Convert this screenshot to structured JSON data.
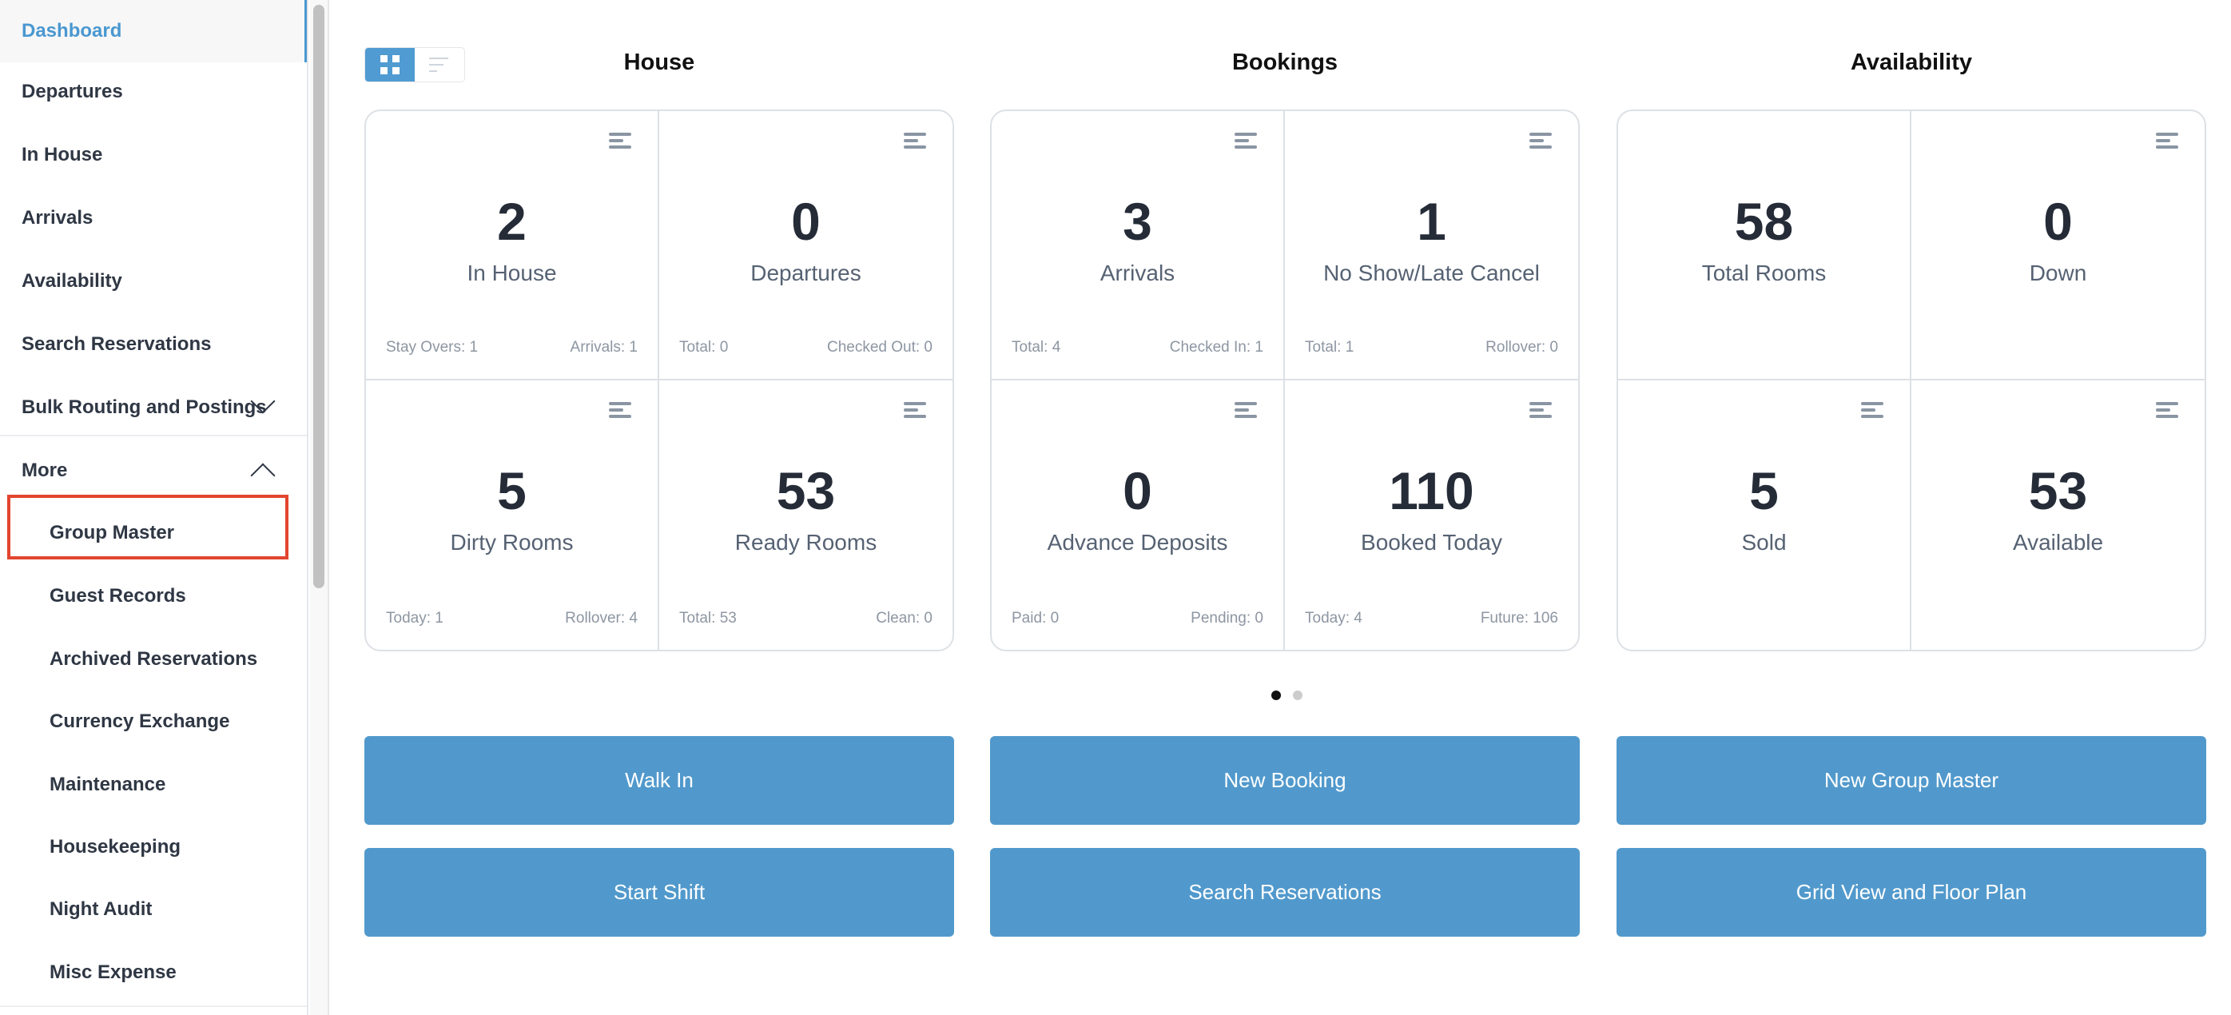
{
  "sidebar": {
    "items": [
      {
        "label": "Dashboard",
        "active": true
      },
      {
        "label": "Departures"
      },
      {
        "label": "In House"
      },
      {
        "label": "Arrivals"
      },
      {
        "label": "Availability"
      },
      {
        "label": "Search Reservations"
      },
      {
        "label": "Bulk Routing and Postings",
        "chevron": "chevron-down-icon"
      },
      {
        "label": "More",
        "chevron": "chevron-up-icon"
      }
    ],
    "sub_items": [
      {
        "label": "Group Master",
        "highlighted": true
      },
      {
        "label": "Guest Records"
      },
      {
        "label": "Archived Reservations"
      },
      {
        "label": "Currency Exchange"
      },
      {
        "label": "Maintenance"
      },
      {
        "label": "Housekeeping"
      },
      {
        "label": "Night Audit"
      },
      {
        "label": "Misc Expense"
      }
    ],
    "highlight_color": "#e2452e",
    "accent": "#4a98d0"
  },
  "view_toggle": {
    "options": [
      "grid-icon",
      "list-icon"
    ],
    "selected": "grid-icon"
  },
  "sections": [
    {
      "title": "House",
      "tiles": [
        {
          "value": "2",
          "label": "In House",
          "left": "Stay Overs: 1",
          "right": "Arrivals: 1"
        },
        {
          "value": "0",
          "label": "Departures",
          "left": "Total: 0",
          "right": "Checked Out: 0"
        },
        {
          "value": "5",
          "label": "Dirty Rooms",
          "left": "Today: 1",
          "right": "Rollover: 4"
        },
        {
          "value": "53",
          "label": "Ready Rooms",
          "left": "Total: 53",
          "right": "Clean: 0"
        }
      ]
    },
    {
      "title": "Bookings",
      "tiles": [
        {
          "value": "3",
          "label": "Arrivals",
          "left": "Total: 4",
          "right": "Checked In: 1"
        },
        {
          "value": "1",
          "label": "No Show/Late Cancel",
          "left": "Total: 1",
          "right": "Rollover: 0"
        },
        {
          "value": "0",
          "label": "Advance Deposits",
          "left": "Paid: 0",
          "right": "Pending: 0"
        },
        {
          "value": "110",
          "label": "Booked Today",
          "left": "Today: 4",
          "right": "Future: 106"
        }
      ]
    },
    {
      "title": "Availability",
      "tiles": [
        {
          "value": "58",
          "label": "Total Rooms"
        },
        {
          "value": "0",
          "label": "Down"
        },
        {
          "value": "5",
          "label": "Sold"
        },
        {
          "value": "53",
          "label": "Available"
        }
      ]
    }
  ],
  "pager": {
    "pages": 2,
    "current": 1
  },
  "actions": [
    [
      "Walk In",
      "New Booking",
      "New Group Master"
    ],
    [
      "Start Shift",
      "Search Reservations",
      "Grid View and Floor Plan"
    ]
  ],
  "button_color": "#5199cc"
}
